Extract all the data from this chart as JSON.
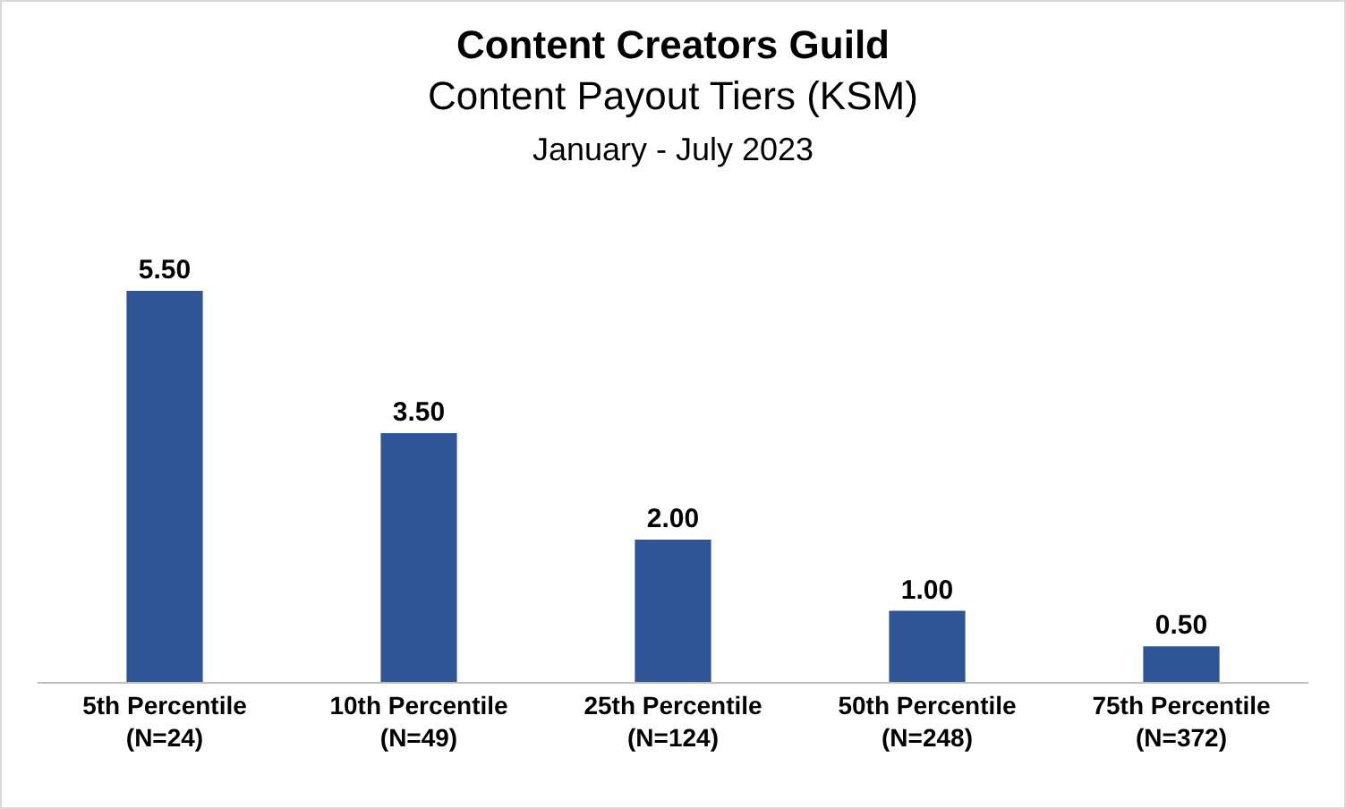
{
  "chart_data": {
    "type": "bar",
    "title": "Content Creators Guild",
    "subtitle": "Content Payout Tiers (KSM)\nJanuary - July 2023",
    "categories": [
      "5th Percentile\n(N=24)",
      "10th Percentile\n(N=49)",
      "25th Percentile\n(N=124)",
      "50th Percentile\n(N=248)",
      "75th Percentile\n(N=372)"
    ],
    "values": [
      5.5,
      3.5,
      2,
      1,
      0.5
    ],
    "value_labels": [
      "5.50",
      "3.50",
      "2.00",
      "1.00",
      "0.50"
    ],
    "color": "#2f5597",
    "grid": false,
    "tick_labels": "x"
  }
}
